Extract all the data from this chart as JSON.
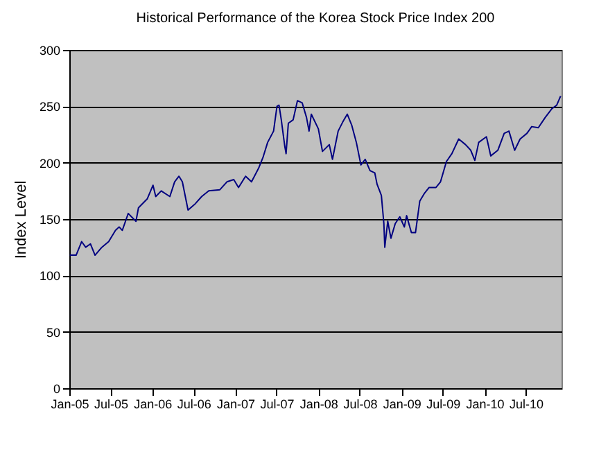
{
  "chart_data": {
    "type": "line",
    "title": "Historical Performance of the Korea Stock Price Index 200",
    "ylabel": "Index Level",
    "x": [
      "2005-01-03",
      "2005-01-31",
      "2005-02-24",
      "2005-03-14",
      "2005-04-04",
      "2005-04-24",
      "2005-05-24",
      "2005-06-23",
      "2005-07-23",
      "2005-08-08",
      "2005-08-22",
      "2005-09-17",
      "2005-10-21",
      "2005-11-01",
      "2005-12-10",
      "2006-01-04",
      "2006-01-16",
      "2006-02-09",
      "2006-03-19",
      "2006-04-09",
      "2006-04-28",
      "2006-05-13",
      "2006-05-28",
      "2006-06-07",
      "2006-07-06",
      "2006-08-06",
      "2006-09-06",
      "2006-10-25",
      "2006-11-25",
      "2006-12-25",
      "2007-01-15",
      "2007-02-15",
      "2007-03-13",
      "2007-04-13",
      "2007-05-03",
      "2007-05-23",
      "2007-06-18",
      "2007-07-03",
      "2007-07-12",
      "2007-07-22",
      "2007-08-06",
      "2007-08-12",
      "2007-08-22",
      "2007-09-12",
      "2007-10-01",
      "2007-10-22",
      "2007-11-10",
      "2007-11-21",
      "2007-12-01",
      "2008-01-01",
      "2008-01-19",
      "2008-02-18",
      "2008-03-03",
      "2008-03-28",
      "2008-04-17",
      "2008-05-07",
      "2008-05-27",
      "2008-06-16",
      "2008-07-06",
      "2008-07-25",
      "2008-08-15",
      "2008-09-05",
      "2008-09-15",
      "2008-10-04",
      "2008-10-15",
      "2008-10-19",
      "2008-11-01",
      "2008-11-15",
      "2008-12-04",
      "2008-12-24",
      "2009-01-13",
      "2009-01-23",
      "2009-02-13",
      "2009-03-03",
      "2009-03-22",
      "2009-04-12",
      "2009-05-02",
      "2009-06-01",
      "2009-06-21",
      "2009-07-17",
      "2009-08-10",
      "2009-09-09",
      "2009-10-09",
      "2009-11-01",
      "2009-11-19",
      "2009-12-06",
      "2010-01-09",
      "2010-01-28",
      "2010-02-28",
      "2010-03-28",
      "2010-04-18",
      "2010-05-13",
      "2010-06-06",
      "2010-07-06",
      "2010-07-27",
      "2010-08-25",
      "2010-09-24",
      "2010-10-24",
      "2010-11-14",
      "2010-12-01"
    ],
    "series": [
      {
        "color": "#000080",
        "values": [
          118,
          118,
          130,
          125,
          128,
          118,
          125,
          130,
          140,
          143,
          140,
          155,
          148,
          160,
          168,
          180,
          170,
          175,
          170,
          183,
          188,
          183,
          168,
          158,
          163,
          170,
          175,
          176,
          183,
          185,
          178,
          188,
          183,
          195,
          205,
          218,
          228,
          250,
          251,
          238,
          215,
          208,
          235,
          238,
          255,
          253,
          240,
          228,
          243,
          230,
          210,
          216,
          203,
          228,
          236,
          243,
          233,
          218,
          198,
          203,
          193,
          191,
          181,
          171,
          146,
          125,
          148,
          133,
          146,
          152,
          143,
          153,
          138,
          138,
          166,
          173,
          178,
          178,
          183,
          201,
          208,
          221,
          216,
          211,
          202,
          218,
          223,
          206,
          211,
          226,
          228,
          211,
          221,
          226,
          232,
          231,
          240,
          248,
          251,
          259
        ]
      }
    ],
    "xlim": [
      "2005-01-01",
      "2010-12-05"
    ],
    "xticks": [
      {
        "value": "2005-01-01",
        "label": "Jan-05"
      },
      {
        "value": "2005-07-01",
        "label": "Jul-05"
      },
      {
        "value": "2006-01-01",
        "label": "Jan-06"
      },
      {
        "value": "2006-07-01",
        "label": "Jul-06"
      },
      {
        "value": "2007-01-01",
        "label": "Jan-07"
      },
      {
        "value": "2007-07-01",
        "label": "Jul-07"
      },
      {
        "value": "2008-01-01",
        "label": "Jan-08"
      },
      {
        "value": "2008-07-01",
        "label": "Jul-08"
      },
      {
        "value": "2009-01-01",
        "label": "Jan-09"
      },
      {
        "value": "2009-07-01",
        "label": "Jul-09"
      },
      {
        "value": "2010-01-01",
        "label": "Jan-10"
      },
      {
        "value": "2010-07-01",
        "label": "Jul-10"
      }
    ],
    "ylim": [
      0,
      300
    ],
    "yticks": [
      0,
      50,
      100,
      150,
      200,
      250,
      300
    ],
    "grid": "y",
    "marker": "none",
    "line_style": "solid"
  }
}
